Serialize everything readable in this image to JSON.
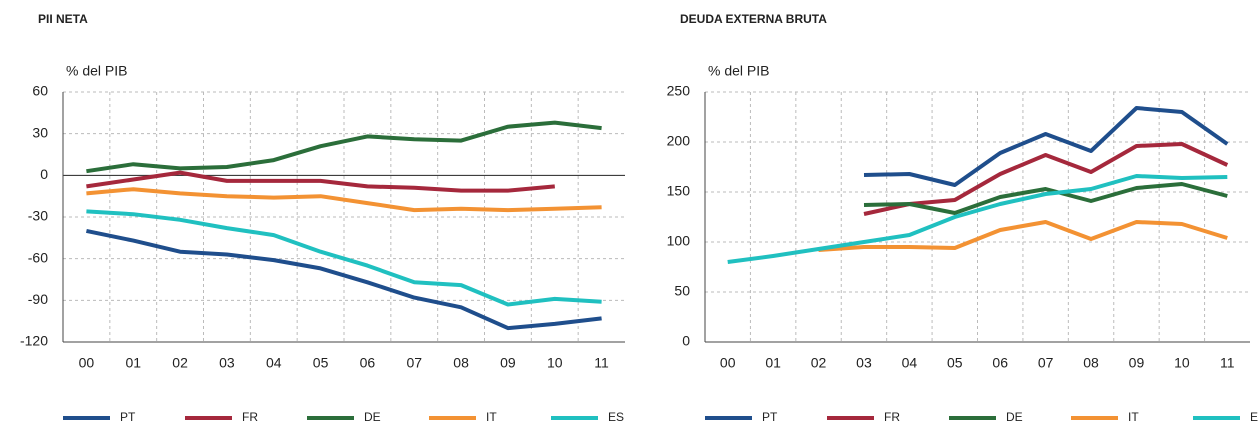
{
  "chart_data": [
    {
      "type": "line",
      "title": "PII NETA",
      "y_label": "% del PIB",
      "categories": [
        "00",
        "01",
        "02",
        "03",
        "04",
        "05",
        "06",
        "07",
        "08",
        "09",
        "10",
        "11"
      ],
      "ylim": [
        -120,
        60
      ],
      "yticks": [
        -120,
        -90,
        -60,
        -30,
        0,
        30,
        60
      ],
      "grid": true,
      "series": [
        {
          "name": "PT",
          "color": "#1f4e8c",
          "values": [
            -40,
            -47,
            -55,
            -57,
            -61,
            -67,
            -77,
            -88,
            -95,
            -110,
            -107,
            -103
          ]
        },
        {
          "name": "FR",
          "color": "#a5283c",
          "values": [
            -8,
            -3,
            2,
            -4,
            -4,
            -4,
            -8,
            -9,
            -11,
            -11,
            -8,
            null
          ]
        },
        {
          "name": "DE",
          "color": "#2b6e3a",
          "values": [
            3,
            8,
            5,
            6,
            11,
            21,
            28,
            26,
            25,
            35,
            38,
            34
          ]
        },
        {
          "name": "IT",
          "color": "#f39233",
          "values": [
            -13,
            -10,
            -13,
            -15,
            -16,
            -15,
            -20,
            -25,
            -24,
            -25,
            -24,
            -23
          ]
        },
        {
          "name": "ES",
          "color": "#20c0c0",
          "values": [
            -26,
            -28,
            -32,
            -38,
            -43,
            -55,
            -65,
            -77,
            -79,
            -93,
            -89,
            -91
          ]
        }
      ]
    },
    {
      "type": "line",
      "title": "DEUDA EXTERNA BRUTA",
      "y_label": "% del PIB",
      "categories": [
        "00",
        "01",
        "02",
        "03",
        "04",
        "05",
        "06",
        "07",
        "08",
        "09",
        "10",
        "11"
      ],
      "ylim": [
        0,
        250
      ],
      "yticks": [
        0,
        50,
        100,
        150,
        200,
        250
      ],
      "grid": true,
      "series": [
        {
          "name": "PT",
          "color": "#1f4e8c",
          "values": [
            null,
            null,
            null,
            167,
            168,
            157,
            189,
            208,
            191,
            234,
            230,
            198
          ]
        },
        {
          "name": "FR",
          "color": "#a5283c",
          "values": [
            null,
            null,
            null,
            128,
            138,
            142,
            168,
            187,
            170,
            196,
            198,
            177
          ]
        },
        {
          "name": "DE",
          "color": "#2b6e3a",
          "values": [
            null,
            null,
            null,
            137,
            138,
            129,
            145,
            153,
            141,
            154,
            158,
            146
          ]
        },
        {
          "name": "IT",
          "color": "#f39233",
          "values": [
            null,
            null,
            92,
            95,
            95,
            94,
            112,
            120,
            103,
            120,
            118,
            104
          ]
        },
        {
          "name": "ES",
          "color": "#20c0c0",
          "values": [
            80,
            86,
            93,
            100,
            107,
            125,
            138,
            148,
            153,
            166,
            164,
            165
          ]
        }
      ]
    }
  ]
}
